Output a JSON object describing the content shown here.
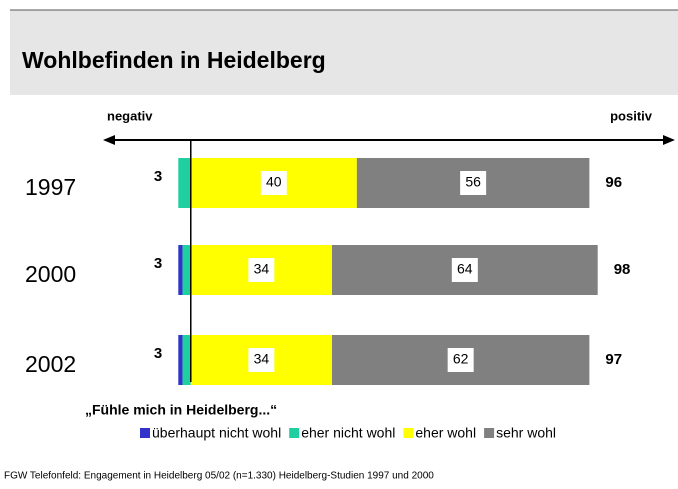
{
  "chart_data": {
    "type": "diverging-bar",
    "title": "Wohlbefinden in Heidelberg",
    "left_label": "negativ",
    "right_label": "positiv",
    "categories": [
      "1997",
      "2000",
      "2002"
    ],
    "series": [
      {
        "name": "überhaupt nicht wohl",
        "color": "#3333cc",
        "values": [
          0,
          1,
          1
        ]
      },
      {
        "name": "eher nicht wohl",
        "color": "#1fcf9f",
        "values": [
          3,
          2,
          2
        ]
      },
      {
        "name": "eher wohl",
        "color": "#ffff00",
        "values": [
          40,
          34,
          34
        ]
      },
      {
        "name": "sehr wohl",
        "color": "#808080",
        "values": [
          56,
          64,
          62
        ]
      }
    ],
    "negative_totals": [
      3,
      3,
      3
    ],
    "positive_totals": [
      96,
      98,
      97
    ],
    "xlim": [
      -5,
      100
    ],
    "subtitle": "„Fühle mich in Heidelberg...“",
    "source": "FGW Telefonfeld: Engagement in Heidelberg 05/02 (n=1.330) Heidelberg-Studien 1997 und 2000"
  }
}
